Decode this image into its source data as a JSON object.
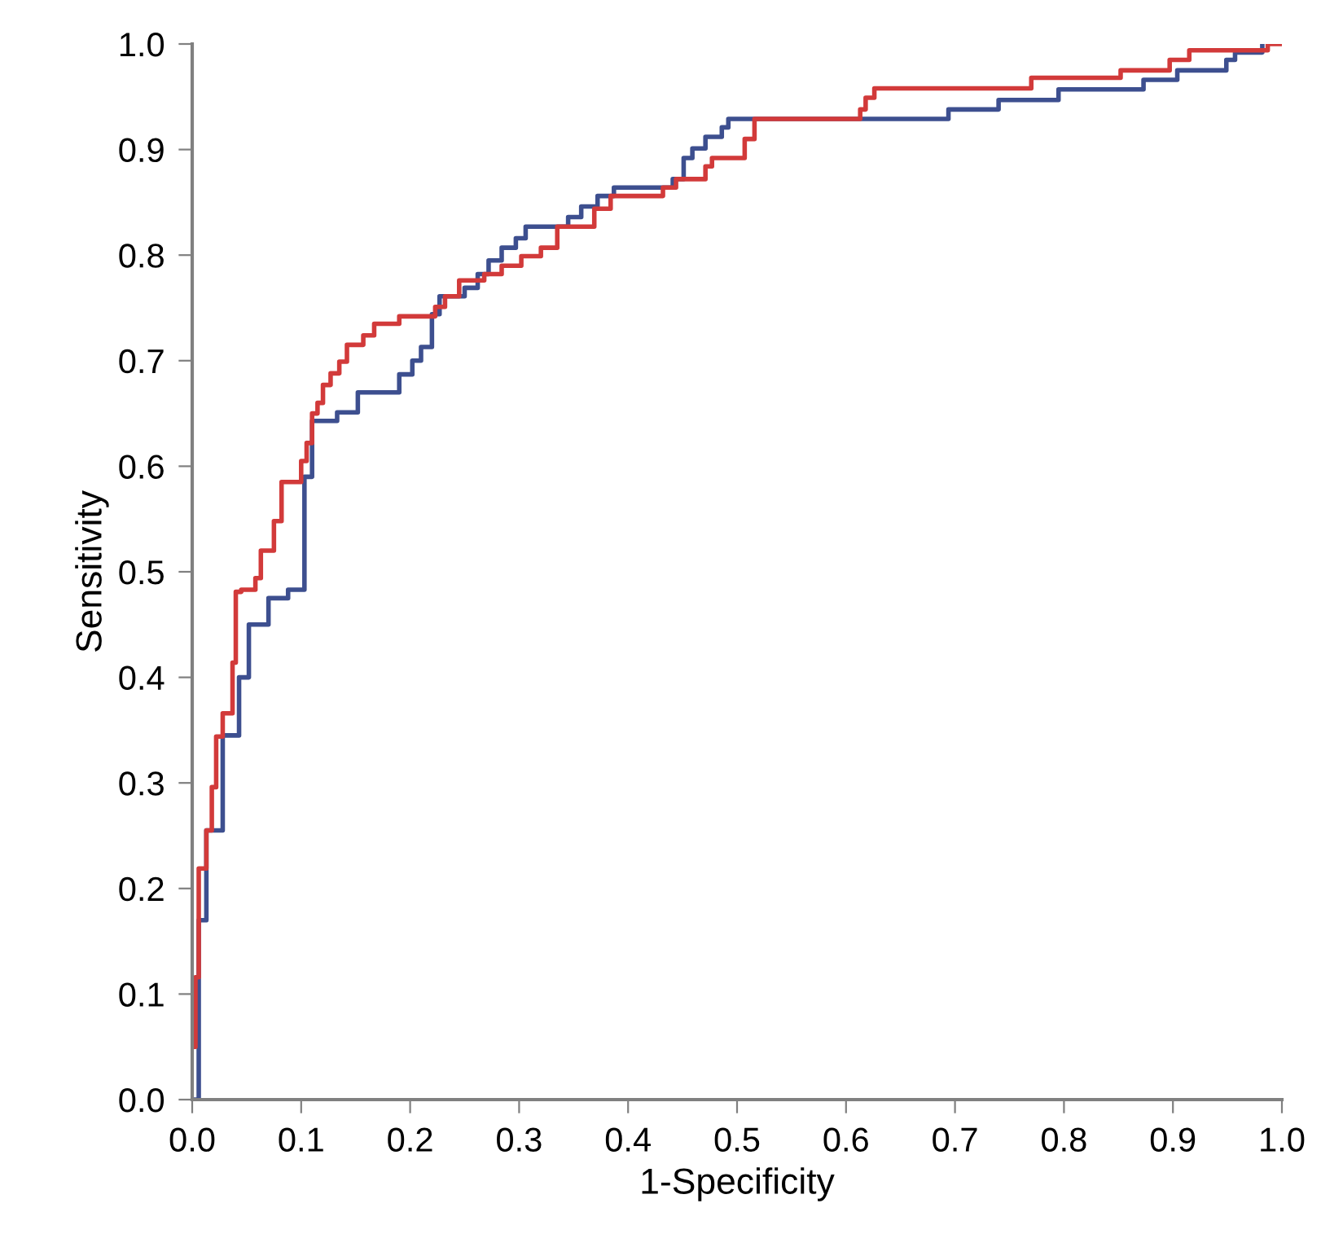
{
  "chart_data": {
    "type": "step",
    "xlabel": "1-Specificity",
    "ylabel": "Sensitivity",
    "xlim": [
      0,
      1
    ],
    "ylim": [
      0,
      1
    ],
    "xticks": [
      {
        "value": 0,
        "label": "0.0"
      },
      0.1,
      0.2,
      0.3,
      0.4,
      0.5,
      0.6,
      0.7,
      0.8,
      0.9,
      {
        "value": 1,
        "label": "1.0"
      }
    ],
    "yticks": [
      {
        "value": 0,
        "label": "0.0"
      },
      0.1,
      0.2,
      0.3,
      0.4,
      0.5,
      0.6,
      0.7,
      0.8,
      0.9,
      {
        "value": 1,
        "label": "1.0"
      }
    ],
    "grid": false,
    "legend": false,
    "marker": "none",
    "line_style": "solid",
    "series": [
      {
        "color": "#3d4f8f",
        "x": [
          0,
          0.006,
          0.013,
          0.028,
          0.043,
          0.052,
          0.07,
          0.088,
          0.103,
          0.11,
          0.133,
          0.152,
          0.19,
          0.202,
          0.21,
          0.22,
          0.227,
          0.25,
          0.262,
          0.272,
          0.284,
          0.297,
          0.306,
          0.345,
          0.357,
          0.372,
          0.387,
          0.441,
          0.451,
          0.459,
          0.471,
          0.486,
          0.492,
          0.694,
          0.74,
          0.795,
          0.873,
          0.904,
          0.949,
          0.957,
          0.982
        ],
        "values": [
          0,
          0.17,
          0.255,
          0.345,
          0.4,
          0.45,
          0.475,
          0.483,
          0.59,
          0.643,
          0.651,
          0.67,
          0.687,
          0.7,
          0.713,
          0.744,
          0.761,
          0.769,
          0.782,
          0.795,
          0.807,
          0.816,
          0.827,
          0.836,
          0.846,
          0.856,
          0.864,
          0.872,
          0.892,
          0.901,
          0.912,
          0.921,
          0.929,
          0.938,
          0.947,
          0.957,
          0.966,
          0.975,
          0.985,
          0.992,
          1.0
        ]
      },
      {
        "color": "#d23a3a",
        "x": [
          0,
          0.003,
          0.006,
          0.013,
          0.018,
          0.022,
          0.028,
          0.037,
          0.04,
          0.045,
          0.058,
          0.063,
          0.075,
          0.082,
          0.1,
          0.105,
          0.11,
          0.115,
          0.12,
          0.127,
          0.135,
          0.142,
          0.157,
          0.167,
          0.19,
          0.223,
          0.232,
          0.245,
          0.268,
          0.284,
          0.302,
          0.32,
          0.335,
          0.369,
          0.384,
          0.432,
          0.444,
          0.471,
          0.477,
          0.507,
          0.516,
          0.613,
          0.618,
          0.626,
          0.77,
          0.852,
          0.897,
          0.915,
          0.987,
          1.0
        ],
        "values": [
          0.05,
          0.116,
          0.219,
          0.255,
          0.296,
          0.344,
          0.366,
          0.414,
          0.481,
          0.483,
          0.494,
          0.52,
          0.548,
          0.585,
          0.605,
          0.622,
          0.65,
          0.66,
          0.677,
          0.688,
          0.699,
          0.715,
          0.724,
          0.735,
          0.742,
          0.751,
          0.761,
          0.776,
          0.782,
          0.79,
          0.799,
          0.807,
          0.827,
          0.844,
          0.856,
          0.864,
          0.872,
          0.884,
          0.892,
          0.91,
          0.929,
          0.938,
          0.949,
          0.958,
          0.968,
          0.975,
          0.985,
          0.994,
          1.0,
          1.0
        ]
      }
    ]
  }
}
